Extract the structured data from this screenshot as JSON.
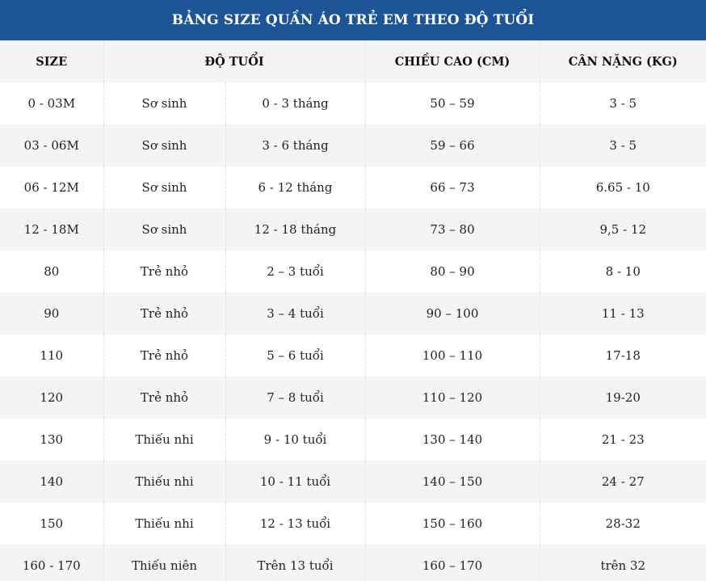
{
  "title": "BẢNG SIZE QUẦN ÁO TRẺ EM THEO ĐỘ TUỔI",
  "headers": {
    "size": "SIZE",
    "age": "ĐỘ TUỔI",
    "height": "CHIỀU CAO (CM)",
    "weight": "CÂN NẶNG (KG)"
  },
  "rows": [
    {
      "size": "0 - 03M",
      "group": "Sơ sinh",
      "age": "0 - 3 tháng",
      "height": "50 – 59",
      "weight": "3 - 5"
    },
    {
      "size": "03 - 06M",
      "group": "Sơ sinh",
      "age": "3 - 6 tháng",
      "height": "59 – 66",
      "weight": "3 - 5"
    },
    {
      "size": "06 - 12M",
      "group": "Sơ sinh",
      "age": "6 - 12 tháng",
      "height": "66 – 73",
      "weight": "6.65 - 10"
    },
    {
      "size": "12 - 18M",
      "group": "Sơ sinh",
      "age": "12 - 18 tháng",
      "height": "73 – 80",
      "weight": "9,5 - 12"
    },
    {
      "size": "80",
      "group": "Trẻ nhỏ",
      "age": "2 – 3 tuổi",
      "height": "80 – 90",
      "weight": "8 - 10"
    },
    {
      "size": "90",
      "group": "Trẻ nhỏ",
      "age": "3 – 4  tuổi",
      "height": "90 – 100",
      "weight": "11 - 13"
    },
    {
      "size": "110",
      "group": "Trẻ nhỏ",
      "age": "5 –  6 tuổi",
      "height": "100 – 110",
      "weight": "17-18"
    },
    {
      "size": "120",
      "group": "Trẻ nhỏ",
      "age": "7 – 8 tuổi",
      "height": "110 – 120",
      "weight": "19-20"
    },
    {
      "size": "130",
      "group": "Thiếu nhi",
      "age": "9 - 10 tuổi",
      "height": "130 – 140",
      "weight": "21 - 23"
    },
    {
      "size": "140",
      "group": "Thiếu nhi",
      "age": "10 - 11 tuổi",
      "height": "140 – 150",
      "weight": "24 -  27"
    },
    {
      "size": "150",
      "group": "Thiếu nhi",
      "age": "12 - 13 tuổi",
      "height": "150 – 160",
      "weight": "28-32"
    },
    {
      "size": "160 - 170",
      "group": "Thiếu niên",
      "age": "Trên 13 tuổi",
      "height": "160 – 170",
      "weight": "trên 32"
    }
  ]
}
